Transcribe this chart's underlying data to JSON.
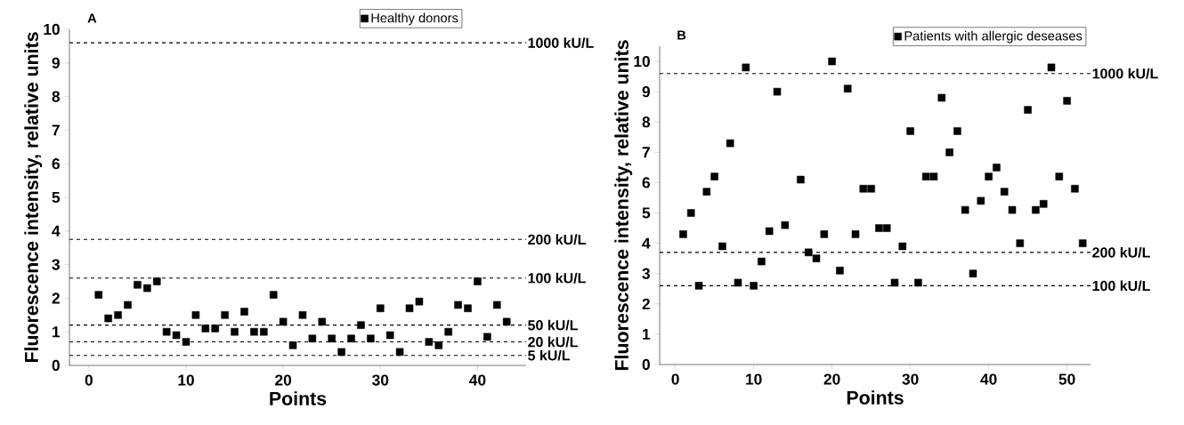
{
  "chart_data": [
    {
      "type": "scatter",
      "title": "A",
      "xlabel": "Points",
      "ylabel": "Fluorescence intensity, relative units",
      "legend": "top right",
      "marker": "square",
      "xlim": [
        -2,
        45
      ],
      "ylim": [
        0,
        10
      ],
      "xticks": [
        0,
        10,
        20,
        30,
        40
      ],
      "yticks": [
        0,
        1,
        2,
        3,
        4,
        5,
        6,
        7,
        8,
        9,
        10
      ],
      "series": [
        {
          "name": "Healthy donors",
          "color": "#000000",
          "x": [
            1,
            2,
            3,
            4,
            5,
            6,
            7,
            8,
            9,
            10,
            11,
            12,
            13,
            14,
            15,
            16,
            17,
            18,
            19,
            20,
            21,
            22,
            23,
            24,
            25,
            26,
            27,
            28,
            29,
            30,
            31,
            32,
            33,
            34,
            35,
            36,
            37,
            38,
            39,
            40,
            41,
            42,
            43
          ],
          "values": [
            2.1,
            1.4,
            1.5,
            1.8,
            2.4,
            2.3,
            2.5,
            1.0,
            0.9,
            0.7,
            1.5,
            1.1,
            1.1,
            1.5,
            1.0,
            1.6,
            1.0,
            1.0,
            2.1,
            1.3,
            0.6,
            1.5,
            0.8,
            1.3,
            0.8,
            0.4,
            0.8,
            1.2,
            0.8,
            1.7,
            0.9,
            0.4,
            1.7,
            1.9,
            0.7,
            0.6,
            1.0,
            1.8,
            1.7,
            2.5,
            0.85,
            1.8,
            1.3
          ]
        }
      ],
      "ref_lines": [
        {
          "axis": "y",
          "value": 9.6,
          "label": "1000 kU/L",
          "line_style": "dashed"
        },
        {
          "axis": "y",
          "value": 3.75,
          "label": "200 kU/L",
          "line_style": "dashed"
        },
        {
          "axis": "y",
          "value": 2.6,
          "label": "100 kU/L",
          "line_style": "dashed"
        },
        {
          "axis": "y",
          "value": 1.2,
          "label": "50 kU/L",
          "line_style": "dashed"
        },
        {
          "axis": "y",
          "value": 0.7,
          "label": "20 kU/L",
          "line_style": "dashed"
        },
        {
          "axis": "y",
          "value": 0.3,
          "label": "5 kU/L",
          "line_style": "dashed"
        }
      ]
    },
    {
      "type": "scatter",
      "title": "B",
      "xlabel": "Points",
      "ylabel": "Fluorescence intensity, relative units",
      "legend": "top right",
      "marker": "square",
      "xlim": [
        -2,
        53
      ],
      "ylim": [
        0,
        10.5
      ],
      "xticks": [
        0,
        10,
        20,
        30,
        40,
        50
      ],
      "yticks": [
        0,
        1,
        2,
        3,
        4,
        5,
        6,
        7,
        8,
        9,
        10
      ],
      "series": [
        {
          "name": "Patients with allergic deseases",
          "color": "#000000",
          "x": [
            1,
            2,
            3,
            4,
            5,
            6,
            7,
            8,
            9,
            10,
            11,
            12,
            13,
            14,
            16,
            17,
            18,
            19,
            20,
            21,
            22,
            23,
            24,
            25,
            26,
            27,
            28,
            29,
            30,
            31,
            32,
            33,
            34,
            35,
            36,
            37,
            38,
            39,
            40,
            41,
            42,
            43,
            44,
            45,
            46,
            47,
            48,
            49,
            50,
            51,
            52
          ],
          "values": [
            4.3,
            5.0,
            2.6,
            5.7,
            6.2,
            3.9,
            7.3,
            2.7,
            9.8,
            2.6,
            3.4,
            4.4,
            9.0,
            4.6,
            6.1,
            3.7,
            3.5,
            4.3,
            10.0,
            3.1,
            9.1,
            4.3,
            5.8,
            5.8,
            4.5,
            4.5,
            2.7,
            3.9,
            7.7,
            2.7,
            6.2,
            6.2,
            8.8,
            7.0,
            7.7,
            5.1,
            3.0,
            5.4,
            6.2,
            6.5,
            5.7,
            5.1,
            4.0,
            8.4,
            5.1,
            5.3,
            9.8,
            6.2,
            8.7,
            5.8,
            4.0
          ]
        }
      ],
      "ref_lines": [
        {
          "axis": "y",
          "value": 9.6,
          "label": "1000 kU/L",
          "line_style": "dashed"
        },
        {
          "axis": "y",
          "value": 3.7,
          "label": "200 kU/L",
          "line_style": "dashed"
        },
        {
          "axis": "y",
          "value": 2.6,
          "label": "100 kU/L",
          "line_style": "dashed"
        }
      ]
    }
  ]
}
